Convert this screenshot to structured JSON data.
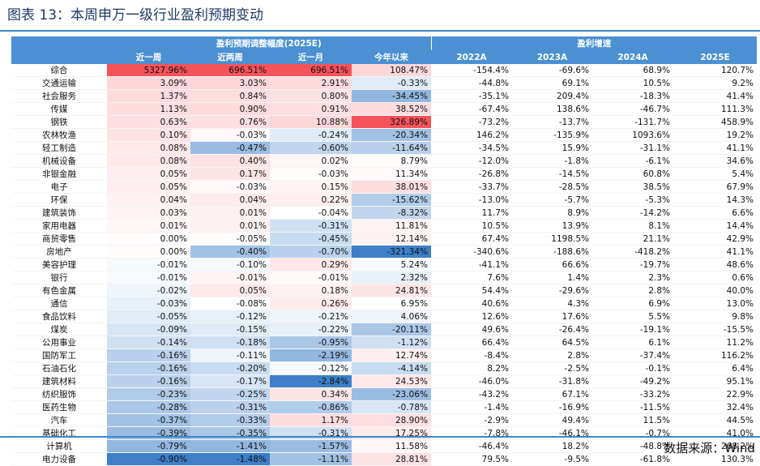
{
  "title": "图表 13：本周申万一级行业盈利预期变动",
  "source": "数据来源：Wind",
  "colors": {
    "header_bg": "#4a90d2",
    "rule": "#3b86c6",
    "negative_scale": "#3d7fc8",
    "positive_scale": "#f4535a"
  },
  "table": {
    "group_headers": [
      "盈利预期调整幅度(2025E)",
      "盈利增速"
    ],
    "columns": [
      "近一周",
      "近两周",
      "近一月",
      "今年以来",
      "2022A",
      "2023A",
      "2024A",
      "2025E"
    ],
    "rows": [
      [
        "综合",
        "5327.96%",
        "696.51%",
        "696.51%",
        "108.47%",
        "-154.4%",
        "-69.6%",
        "68.9%",
        "120.7%"
      ],
      [
        "交通运输",
        "3.09%",
        "3.03%",
        "2.91%",
        "-0.33%",
        "-44.8%",
        "69.1%",
        "10.5%",
        "9.2%"
      ],
      [
        "社会服务",
        "1.37%",
        "0.84%",
        "0.80%",
        "-34.45%",
        "-35.1%",
        "209.4%",
        "-18.3%",
        "41.4%"
      ],
      [
        "传媒",
        "1.13%",
        "0.90%",
        "0.91%",
        "38.52%",
        "-67.4%",
        "138.6%",
        "-46.7%",
        "111.3%"
      ],
      [
        "钢铁",
        "0.63%",
        "0.76%",
        "10.88%",
        "326.89%",
        "-73.2%",
        "-13.7%",
        "-131.7%",
        "458.9%"
      ],
      [
        "农林牧渔",
        "0.10%",
        "-0.03%",
        "-0.24%",
        "-20.34%",
        "146.2%",
        "-135.9%",
        "1093.6%",
        "19.2%"
      ],
      [
        "轻工制造",
        "0.08%",
        "-0.47%",
        "-0.60%",
        "-11.64%",
        "-34.5%",
        "15.9%",
        "-31.1%",
        "41.1%"
      ],
      [
        "机械设备",
        "0.08%",
        "0.40%",
        "0.02%",
        "8.79%",
        "-12.0%",
        "-1.8%",
        "-6.1%",
        "34.6%"
      ],
      [
        "非银金融",
        "0.05%",
        "0.17%",
        "-0.03%",
        "11.34%",
        "-26.8%",
        "-14.5%",
        "60.8%",
        "5.4%"
      ],
      [
        "电子",
        "0.05%",
        "-0.03%",
        "0.15%",
        "38.01%",
        "-33.7%",
        "-28.5%",
        "38.5%",
        "67.9%"
      ],
      [
        "环保",
        "0.04%",
        "0.04%",
        "0.22%",
        "-15.62%",
        "-13.0%",
        "-5.7%",
        "-5.3%",
        "14.3%"
      ],
      [
        "建筑装饰",
        "0.03%",
        "0.01%",
        "-0.04%",
        "-8.32%",
        "11.7%",
        "8.9%",
        "-14.2%",
        "6.6%"
      ],
      [
        "家用电器",
        "0.01%",
        "0.01%",
        "-0.31%",
        "11.81%",
        "10.5%",
        "13.9%",
        "8.1%",
        "14.4%"
      ],
      [
        "商贸零售",
        "0.00%",
        "-0.05%",
        "-0.45%",
        "12.14%",
        "67.4%",
        "1198.5%",
        "21.1%",
        "42.9%"
      ],
      [
        "房地产",
        "0.00%",
        "-0.40%",
        "-0.70%",
        "-321.34%",
        "-340.6%",
        "-188.6%",
        "-418.2%",
        "41.1%"
      ],
      [
        "美容护理",
        "-0.01%",
        "-0.10%",
        "0.29%",
        "5.24%",
        "-41.1%",
        "66.6%",
        "-19.7%",
        "48.6%"
      ],
      [
        "银行",
        "-0.01%",
        "-0.01%",
        "-0.01%",
        "2.32%",
        "7.6%",
        "1.4%",
        "2.3%",
        "0.6%"
      ],
      [
        "有色金属",
        "-0.02%",
        "0.05%",
        "0.18%",
        "24.81%",
        "54.4%",
        "-29.6%",
        "2.8%",
        "40.0%"
      ],
      [
        "通信",
        "-0.03%",
        "-0.08%",
        "0.26%",
        "6.95%",
        "40.6%",
        "4.3%",
        "6.9%",
        "13.0%"
      ],
      [
        "食品饮料",
        "-0.05%",
        "-0.12%",
        "-0.21%",
        "4.06%",
        "12.6%",
        "17.6%",
        "5.5%",
        "9.8%"
      ],
      [
        "煤炭",
        "-0.09%",
        "-0.15%",
        "-0.22%",
        "-20.11%",
        "49.6%",
        "-26.4%",
        "-19.1%",
        "-15.5%"
      ],
      [
        "公用事业",
        "-0.14%",
        "-0.18%",
        "-0.95%",
        "-1.12%",
        "66.4%",
        "64.5%",
        "6.1%",
        "11.2%"
      ],
      [
        "国防军工",
        "-0.16%",
        "-0.11%",
        "-2.19%",
        "12.74%",
        "-8.4%",
        "2.8%",
        "-37.4%",
        "116.2%"
      ],
      [
        "石油石化",
        "-0.16%",
        "-0.20%",
        "-0.12%",
        "-4.14%",
        "8.2%",
        "-2.5%",
        "-0.1%",
        "6.4%"
      ],
      [
        "建筑材料",
        "-0.16%",
        "-0.17%",
        "-2.84%",
        "24.53%",
        "-46.0%",
        "-31.8%",
        "-49.2%",
        "95.1%"
      ],
      [
        "纺织服饰",
        "-0.23%",
        "-0.25%",
        "0.34%",
        "-23.06%",
        "-43.2%",
        "67.1%",
        "-33.2%",
        "22.9%"
      ],
      [
        "医药生物",
        "-0.28%",
        "-0.31%",
        "-0.86%",
        "-0.78%",
        "-1.4%",
        "-16.9%",
        "-11.5%",
        "32.4%"
      ],
      [
        "汽车",
        "-0.37%",
        "-0.33%",
        "1.17%",
        "28.90%",
        "-2.9%",
        "49.4%",
        "11.5%",
        "44.5%"
      ],
      [
        "基础化工",
        "-0.39%",
        "-0.35%",
        "-0.31%",
        "17.25%",
        "-7.8%",
        "-46.1%",
        "-0.7%",
        "41.0%"
      ],
      [
        "计算机",
        "-0.79%",
        "-1.41%",
        "-1.57%",
        "11.58%",
        "-46.4%",
        "18.2%",
        "-48.8%",
        "268.2%"
      ],
      [
        "电力设备",
        "-0.90%",
        "-1.48%",
        "-1.11%",
        "28.81%",
        "79.5%",
        "-9.5%",
        "-61.8%",
        "130.3%"
      ]
    ]
  }
}
